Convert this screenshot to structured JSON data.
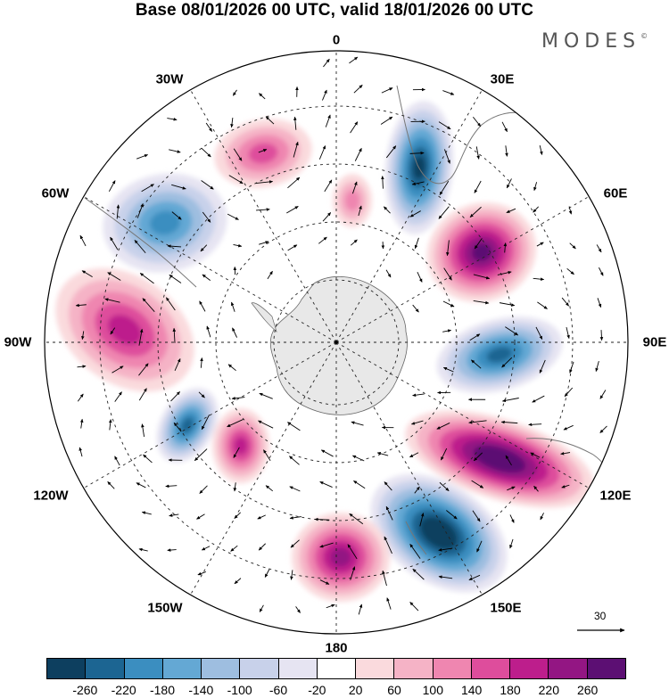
{
  "title": "Base 08/01/2026 00 UTC, valid 18/01/2026 00 UTC",
  "brand": "MODES",
  "brand_mark": "©",
  "longitude_labels": {
    "top": "0",
    "lon30e": "30E",
    "lon60e": "60E",
    "lon90e": "90E",
    "lon120e": "120E",
    "lon150e": "150E",
    "bottom": "180",
    "lon150w": "150W",
    "lon120w": "120W",
    "lon90w": "90W",
    "lon60w": "60W",
    "lon30w": "30W"
  },
  "wind_reference": {
    "label": "30",
    "value": 30
  },
  "colorbar": {
    "colors": [
      "#0d3f5f",
      "#1c6592",
      "#3b8ec0",
      "#64a8d4",
      "#9ebee0",
      "#c8d1ea",
      "#e6e4f2",
      "#ffffff",
      "#fadadd",
      "#f5b3c6",
      "#ef86b0",
      "#de4d9c",
      "#bd1e8c",
      "#931683",
      "#5c0f73"
    ],
    "ticks": [
      "-260",
      "-220",
      "-180",
      "-140",
      "-100",
      "-60",
      "-20",
      "20",
      "60",
      "100",
      "140",
      "180",
      "220",
      "260"
    ]
  },
  "anomalies": [
    {
      "name": "positive-anomaly-nw",
      "value": 100
    },
    {
      "name": "positive-anomaly-pole-center",
      "value": 60
    },
    {
      "name": "negative-anomaly-30e",
      "value": -220
    },
    {
      "name": "positive-anomaly-60e",
      "value": 220
    },
    {
      "name": "negative-anomaly-90e",
      "value": -180
    },
    {
      "name": "positive-anomaly-120e",
      "value": 260
    },
    {
      "name": "negative-anomaly-150e",
      "value": -260
    },
    {
      "name": "positive-anomaly-180",
      "value": 180
    },
    {
      "name": "positive-anomaly-150w",
      "value": 140
    },
    {
      "name": "negative-anomaly-120w",
      "value": -180
    },
    {
      "name": "positive-anomaly-90w",
      "value": 140
    },
    {
      "name": "negative-anomaly-60w",
      "value": -140
    }
  ]
}
